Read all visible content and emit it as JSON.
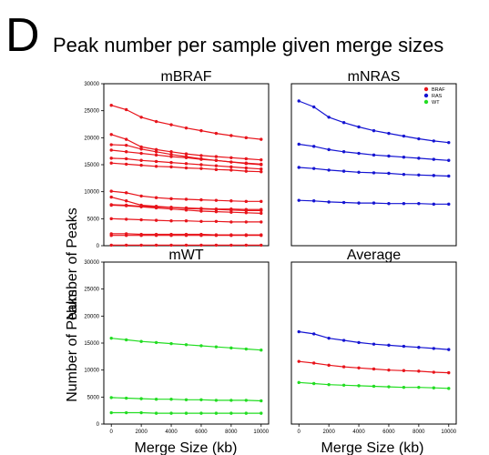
{
  "panel_letter": "D",
  "figure_title": "Peak number per sample given merge sizes",
  "ylabel": "Number of Peaks",
  "xlabel": "Merge Size (kb)",
  "legend": [
    {
      "label": "BRAF",
      "color": "#e8141b"
    },
    {
      "label": "RAS",
      "color": "#1414d2"
    },
    {
      "label": "WT",
      "color": "#22dd22"
    }
  ],
  "chart_data": [
    {
      "type": "line",
      "title": "mBRAF",
      "x": [
        0,
        1000,
        2000,
        3000,
        4000,
        5000,
        6000,
        7000,
        8000,
        9000,
        10000
      ],
      "ylim": [
        0,
        30000
      ],
      "xlim": [
        -500,
        10500
      ],
      "yticks": [
        "0",
        "5000",
        "10000",
        "15000",
        "20000",
        "25000",
        "30000"
      ],
      "xticks": [],
      "color": "#e8141b",
      "series": [
        {
          "values": [
            26000,
            25200,
            23800,
            23000,
            22400,
            21800,
            21300,
            20800,
            20400,
            20000,
            19700
          ]
        },
        {
          "values": [
            20600,
            19700,
            18300,
            17800,
            17400,
            17000,
            16700,
            16500,
            16300,
            16100,
            15900
          ]
        },
        {
          "values": [
            18700,
            18600,
            17900,
            17400,
            16900,
            16500,
            16100,
            15800,
            15500,
            15200,
            15000
          ]
        },
        {
          "values": [
            17700,
            17400,
            17100,
            16800,
            16500,
            16300,
            16000,
            15800,
            15500,
            15300,
            15100
          ]
        },
        {
          "values": [
            16200,
            16100,
            15800,
            15600,
            15400,
            15200,
            15000,
            14800,
            14600,
            14400,
            14200
          ]
        },
        {
          "values": [
            15300,
            15100,
            14900,
            14700,
            14600,
            14400,
            14300,
            14100,
            14000,
            13800,
            13700
          ]
        },
        {
          "values": [
            10100,
            9800,
            9200,
            8900,
            8700,
            8600,
            8500,
            8400,
            8300,
            8200,
            8200
          ]
        },
        {
          "values": [
            9000,
            8300,
            7500,
            7300,
            7100,
            6900,
            6800,
            6700,
            6600,
            6500,
            6500
          ]
        },
        {
          "values": [
            7600,
            7500,
            7300,
            7200,
            7100,
            7000,
            6900,
            6800,
            6800,
            6700,
            6700
          ]
        },
        {
          "values": [
            7500,
            7400,
            7200,
            7000,
            6800,
            6600,
            6400,
            6300,
            6200,
            6100,
            6000
          ]
        },
        {
          "values": [
            5000,
            4900,
            4800,
            4700,
            4600,
            4600,
            4500,
            4500,
            4400,
            4400,
            4400
          ]
        },
        {
          "values": [
            2200,
            2200,
            2100,
            2100,
            2100,
            2100,
            2100,
            2000,
            2000,
            2000,
            2000
          ]
        },
        {
          "values": [
            1900,
            1900,
            1900,
            1900,
            1900,
            1900,
            1900,
            1900,
            1900,
            1900,
            1900
          ]
        },
        {
          "values": [
            100,
            100,
            100,
            100,
            100,
            100,
            100,
            100,
            100,
            100,
            100
          ]
        }
      ]
    },
    {
      "type": "line",
      "title": "mNRAS",
      "x": [
        0,
        1000,
        2000,
        3000,
        4000,
        5000,
        6000,
        7000,
        8000,
        9000,
        10000
      ],
      "ylim": [
        0,
        30000
      ],
      "xlim": [
        -500,
        10500
      ],
      "yticks": [],
      "xticks": [],
      "color": "#1414d2",
      "series": [
        {
          "values": [
            26800,
            25700,
            23800,
            22800,
            22000,
            21300,
            20800,
            20300,
            19800,
            19400,
            19100
          ]
        },
        {
          "values": [
            18800,
            18400,
            17800,
            17400,
            17100,
            16800,
            16600,
            16400,
            16200,
            16000,
            15800
          ]
        },
        {
          "values": [
            14500,
            14300,
            14000,
            13800,
            13600,
            13500,
            13400,
            13200,
            13100,
            13000,
            12900
          ]
        },
        {
          "values": [
            8400,
            8300,
            8100,
            8000,
            7900,
            7900,
            7800,
            7800,
            7800,
            7700,
            7700
          ]
        }
      ]
    },
    {
      "type": "line",
      "title": "mWT",
      "x": [
        0,
        1000,
        2000,
        3000,
        4000,
        5000,
        6000,
        7000,
        8000,
        9000,
        10000
      ],
      "ylim": [
        0,
        30000
      ],
      "xlim": [
        -500,
        10500
      ],
      "yticks": [
        "0",
        "5000",
        "10000",
        "15000",
        "20000",
        "25000",
        "30000"
      ],
      "xticks": [
        "0",
        "2000",
        "4000",
        "6000",
        "8000",
        "10000"
      ],
      "color": "#22dd22",
      "series": [
        {
          "values": [
            15900,
            15600,
            15300,
            15100,
            14900,
            14700,
            14500,
            14300,
            14100,
            13900,
            13700
          ]
        },
        {
          "values": [
            4900,
            4800,
            4700,
            4600,
            4600,
            4500,
            4500,
            4400,
            4400,
            4400,
            4300
          ]
        },
        {
          "values": [
            2100,
            2100,
            2100,
            2000,
            2000,
            2000,
            2000,
            2000,
            2000,
            2000,
            2000
          ]
        }
      ]
    },
    {
      "type": "line",
      "title": "Average",
      "x": [
        0,
        1000,
        2000,
        3000,
        4000,
        5000,
        6000,
        7000,
        8000,
        9000,
        10000
      ],
      "ylim": [
        0,
        30000
      ],
      "xlim": [
        -500,
        10500
      ],
      "yticks": [],
      "xticks": [
        "0",
        "2000",
        "4000",
        "6000",
        "8000",
        "10000"
      ],
      "series": [
        {
          "name": "RAS",
          "color": "#1414d2",
          "values": [
            17100,
            16700,
            15900,
            15500,
            15100,
            14800,
            14600,
            14400,
            14200,
            14000,
            13800
          ]
        },
        {
          "name": "BRAF",
          "color": "#e8141b",
          "values": [
            11600,
            11300,
            10900,
            10600,
            10400,
            10200,
            10000,
            9900,
            9800,
            9600,
            9500
          ]
        },
        {
          "name": "WT",
          "color": "#22dd22",
          "values": [
            7700,
            7500,
            7300,
            7200,
            7100,
            7000,
            6900,
            6800,
            6800,
            6700,
            6600
          ]
        }
      ]
    }
  ]
}
